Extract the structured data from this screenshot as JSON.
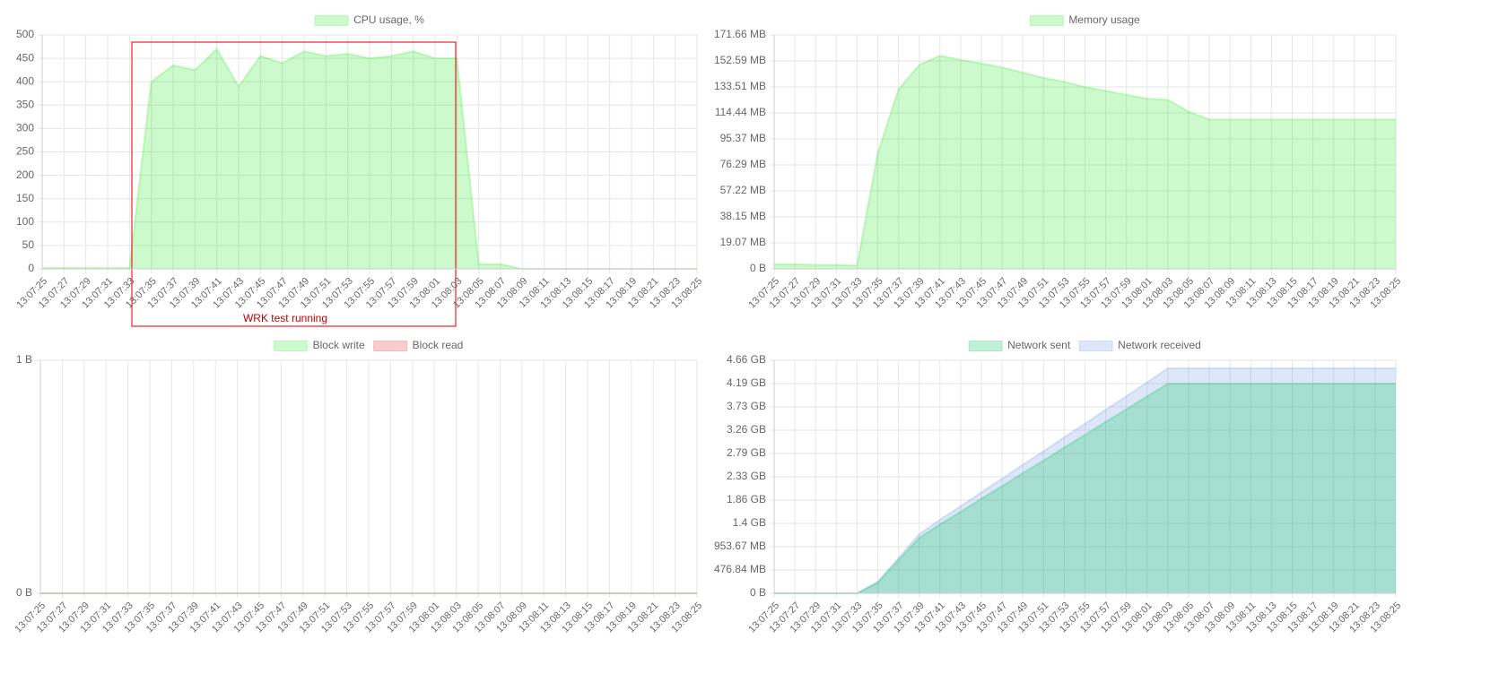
{
  "chart_data": [
    {
      "type": "line",
      "annotation": "WRK test running",
      "categories": [
        "13:07:25",
        "13:07:27",
        "13:07:29",
        "13:07:31",
        "13:07:33",
        "13:07:35",
        "13:07:37",
        "13:07:39",
        "13:07:41",
        "13:07:43",
        "13:07:45",
        "13:07:47",
        "13:07:49",
        "13:07:51",
        "13:07:53",
        "13:07:55",
        "13:07:57",
        "13:07:59",
        "13:08:01",
        "13:08:03",
        "13:08:05",
        "13:08:07",
        "13:08:09",
        "13:08:11",
        "13:08:13",
        "13:08:15",
        "13:08:17",
        "13:08:19",
        "13:08:21",
        "13:08:23",
        "13:08:25"
      ],
      "series": [
        {
          "name": "CPU usage, %",
          "color": "rgba(0,230,0,0.2)",
          "values": [
            2,
            2,
            2,
            2,
            2,
            400,
            435,
            425,
            470,
            390,
            455,
            440,
            465,
            455,
            460,
            450,
            455,
            465,
            450,
            450,
            10,
            10,
            0,
            0,
            0,
            0,
            0,
            0,
            0,
            0,
            0
          ]
        }
      ],
      "ylim": [
        0,
        500
      ],
      "yticks": [
        0,
        50,
        100,
        150,
        200,
        250,
        300,
        350,
        400,
        450,
        500
      ],
      "grid": true
    },
    {
      "type": "line",
      "categories": [
        "13:07:25",
        "13:07:27",
        "13:07:29",
        "13:07:31",
        "13:07:33",
        "13:07:35",
        "13:07:37",
        "13:07:39",
        "13:07:41",
        "13:07:43",
        "13:07:45",
        "13:07:47",
        "13:07:49",
        "13:07:51",
        "13:07:53",
        "13:07:55",
        "13:07:57",
        "13:07:59",
        "13:08:01",
        "13:08:03",
        "13:08:05",
        "13:08:07",
        "13:08:09",
        "13:08:11",
        "13:08:13",
        "13:08:15",
        "13:08:17",
        "13:08:19",
        "13:08:21",
        "13:08:23",
        "13:08:25"
      ],
      "series": [
        {
          "name": "Memory usage",
          "color": "rgba(0,230,0,0.2)",
          "values": [
            3500000,
            3500000,
            3000000,
            3000000,
            2500000,
            89000000,
            138000000,
            157000000,
            164000000,
            161000000,
            158000000,
            155000000,
            151000000,
            147000000,
            144000000,
            140000000,
            137000000,
            134000000,
            131000000,
            130000000,
            121000000,
            115000000,
            115000000,
            115000000,
            115000000,
            115000000,
            115000000,
            115000000,
            115000000,
            115000000,
            115000000
          ]
        }
      ],
      "ylim": [
        0,
        180000000
      ],
      "yticks": [
        {
          "value": 0,
          "label": "0 B"
        },
        {
          "value": 20000000,
          "label": "19.07 MB"
        },
        {
          "value": 40000000,
          "label": "38.15 MB"
        },
        {
          "value": 60000000,
          "label": "57.22 MB"
        },
        {
          "value": 80000000,
          "label": "76.29 MB"
        },
        {
          "value": 100000000,
          "label": "95.37 MB"
        },
        {
          "value": 120000000,
          "label": "114.44 MB"
        },
        {
          "value": 140000000,
          "label": "133.51 MB"
        },
        {
          "value": 160000000,
          "label": "152.59 MB"
        },
        {
          "value": 180000000,
          "label": "171.66 MB"
        }
      ],
      "grid": true
    },
    {
      "type": "line",
      "categories": [
        "13:07:25",
        "13:07:27",
        "13:07:29",
        "13:07:31",
        "13:07:33",
        "13:07:35",
        "13:07:37",
        "13:07:39",
        "13:07:41",
        "13:07:43",
        "13:07:45",
        "13:07:47",
        "13:07:49",
        "13:07:51",
        "13:07:53",
        "13:07:55",
        "13:07:57",
        "13:07:59",
        "13:08:01",
        "13:08:03",
        "13:08:05",
        "13:08:07",
        "13:08:09",
        "13:08:11",
        "13:08:13",
        "13:08:15",
        "13:08:17",
        "13:08:19",
        "13:08:21",
        "13:08:23",
        "13:08:25"
      ],
      "series": [
        {
          "name": "Block write",
          "color": "rgba(0,230,0,0.2)",
          "values": [
            0,
            0,
            0,
            0,
            0,
            0,
            0,
            0,
            0,
            0,
            0,
            0,
            0,
            0,
            0,
            0,
            0,
            0,
            0,
            0,
            0,
            0,
            0,
            0,
            0,
            0,
            0,
            0,
            0,
            0,
            0
          ]
        },
        {
          "name": "Block read",
          "color": "rgba(230,0,0,0.2)",
          "values": [
            0,
            0,
            0,
            0,
            0,
            0,
            0,
            0,
            0,
            0,
            0,
            0,
            0,
            0,
            0,
            0,
            0,
            0,
            0,
            0,
            0,
            0,
            0,
            0,
            0,
            0,
            0,
            0,
            0,
            0,
            0
          ]
        }
      ],
      "ylim": [
        0,
        1
      ],
      "yticks": [
        {
          "value": 0,
          "label": "0 B"
        },
        {
          "value": 1,
          "label": "1 B"
        }
      ],
      "grid": true
    },
    {
      "type": "line",
      "categories": [
        "13:07:25",
        "13:07:27",
        "13:07:29",
        "13:07:31",
        "13:07:33",
        "13:07:35",
        "13:07:37",
        "13:07:39",
        "13:07:41",
        "13:07:43",
        "13:07:45",
        "13:07:47",
        "13:07:49",
        "13:07:51",
        "13:07:53",
        "13:07:55",
        "13:07:57",
        "13:07:59",
        "13:08:01",
        "13:08:03",
        "13:08:05",
        "13:08:07",
        "13:08:09",
        "13:08:11",
        "13:08:13",
        "13:08:15",
        "13:08:17",
        "13:08:19",
        "13:08:21",
        "13:08:23",
        "13:08:25"
      ],
      "series": [
        {
          "name": "Network sent",
          "color": "rgba(0,200,90,0.25)",
          "values": [
            0,
            0,
            0,
            0,
            0,
            230000000,
            710000000,
            1190000000,
            1480000000,
            1750000000,
            2030000000,
            2300000000,
            2580000000,
            2850000000,
            3130000000,
            3400000000,
            3680000000,
            3950000000,
            4230000000,
            4500000000,
            4500000000,
            4500000000,
            4500000000,
            4500000000,
            4500000000,
            4500000000,
            4500000000,
            4500000000,
            4500000000,
            4500000000,
            4500000000
          ]
        },
        {
          "name": "Network received",
          "color": "rgba(70,120,230,0.18)",
          "values": [
            0,
            0,
            0,
            0,
            0,
            250000000,
            760000000,
            1270000000,
            1580000000,
            1870000000,
            2170000000,
            2460000000,
            2760000000,
            3050000000,
            3350000000,
            3640000000,
            3940000000,
            4230000000,
            4530000000,
            4830000000,
            4830000000,
            4830000000,
            4830000000,
            4830000000,
            4830000000,
            4830000000,
            4830000000,
            4830000000,
            4830000000,
            4830000000,
            4830000000
          ]
        }
      ],
      "ylim": [
        0,
        5000000000
      ],
      "yticks": [
        {
          "value": 0,
          "label": "0 B"
        },
        {
          "value": 500000000,
          "label": "476.84 MB"
        },
        {
          "value": 1000000000,
          "label": "953.67 MB"
        },
        {
          "value": 1500000000,
          "label": "1.4 GB"
        },
        {
          "value": 2000000000,
          "label": "1.86 GB"
        },
        {
          "value": 2500000000,
          "label": "2.33 GB"
        },
        {
          "value": 3000000000,
          "label": "2.79 GB"
        },
        {
          "value": 3500000000,
          "label": "3.26 GB"
        },
        {
          "value": 4000000000,
          "label": "3.73 GB"
        },
        {
          "value": 4500000000,
          "label": "4.19 GB"
        },
        {
          "value": 5000000000,
          "label": "4.66 GB"
        }
      ],
      "grid": true
    }
  ]
}
